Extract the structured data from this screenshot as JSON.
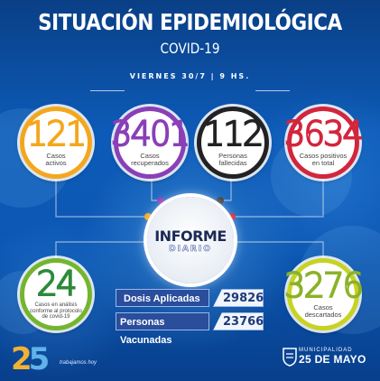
{
  "header": {
    "title": "SITUACIÓN EPIDEMIOLÓGICA",
    "subtitle": "COVID-19",
    "date": "VIERNES 30/7 | 9 HS."
  },
  "stats": {
    "activos": {
      "value": "121",
      "label1": "Casos",
      "label2": "activos",
      "color": "#f4a71c"
    },
    "recuperados": {
      "value": "3401",
      "label1": "Casos",
      "label2": "recuperados",
      "color": "#8a3fb7"
    },
    "fallecidos": {
      "value": "112",
      "label1": "Personas",
      "label2": "fallecidas",
      "color": "#222222"
    },
    "positivos": {
      "value": "3634",
      "label1": "Casos positivos",
      "label2": "en total",
      "color": "#d2263d"
    },
    "analisis": {
      "value": "24",
      "label1": "Casos en análisis",
      "label2": "conforme al protocolo",
      "label3": "de covid-19",
      "color": "#74b52e"
    },
    "descartados": {
      "value": "3276",
      "label1": "Casos",
      "label2": "descartados",
      "color": "#c7d321"
    }
  },
  "informe": {
    "title": "INFORME",
    "subtitle": "DIARIO"
  },
  "vacunas": {
    "dosis_label": "Dosis Aplicadas",
    "dosis_value": "29826",
    "personas_label": "Personas Vacunadas",
    "personas_value": "23766"
  },
  "footer": {
    "logo_number_2": "2",
    "logo_number_5": "5",
    "tagline": "trabajamos hoy",
    "muni_line1": "MUNICIPALIDAD",
    "muni_line2": "25 DE MAYO"
  }
}
